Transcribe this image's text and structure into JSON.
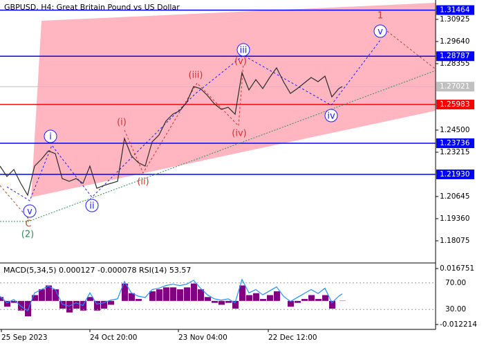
{
  "chart_data": [
    {
      "type": "line",
      "title": "GBPUSD, H4:  Great Britain Pound vs US Dollar",
      "x": [
        0,
        2,
        4,
        6,
        8,
        10,
        12,
        14,
        16,
        18,
        20,
        22,
        24,
        26,
        28,
        30,
        32,
        34,
        36,
        38,
        40,
        42,
        44,
        46,
        48,
        50,
        52,
        54,
        56,
        58,
        60,
        62,
        64,
        66,
        68,
        70,
        72,
        74,
        76,
        78,
        80,
        82,
        84,
        86,
        88,
        90,
        92,
        94,
        96,
        98,
        99
      ],
      "values": [
        1.22411,
        1.21808,
        1.2221,
        1.21407,
        1.20724,
        1.22411,
        1.22812,
        1.23294,
        1.23133,
        1.21688,
        1.21527,
        1.21688,
        1.21407,
        1.22411,
        1.21125,
        1.21286,
        1.21407,
        1.21527,
        1.24017,
        1.23013,
        1.22611,
        1.22411,
        1.23816,
        1.24218,
        1.25021,
        1.25423,
        1.25623,
        1.26105,
        1.27029,
        1.26909,
        1.26507,
        1.26025,
        1.25704,
        1.25824,
        1.25423,
        1.27832,
        1.26828,
        1.27431,
        1.26909,
        1.27551,
        1.28113,
        1.2731,
        1.26627,
        1.26909,
        1.2723,
        1.27551,
        1.2731,
        1.27631,
        1.26427,
        1.26909,
        1.27021
      ],
      "color": "#2b2b2b",
      "xlim": [
        0,
        126
      ],
      "ylim": [
        1.16789,
        1.32049
      ],
      "yticks": [
        1.30925,
        {
          "value": 1.2964,
          "label": "1.29640"
        },
        1.28355,
        {
          "value": 1.245,
          "label": "1.24500"
        },
        1.23215,
        1.20645,
        {
          "value": 1.1936,
          "label": "1.19360"
        },
        1.18075
      ],
      "levels": [
        {
          "value": 1.31464,
          "color": "#0000ff"
        },
        {
          "value": 1.28787,
          "color": "#0000ff"
        },
        {
          "value": 1.27021,
          "color": "#c0c0c0"
        },
        {
          "value": 1.25983,
          "color": "#ff0000"
        },
        {
          "value": 1.23736,
          "color": "#0000ff"
        },
        {
          "value": 1.2193,
          "label": "1.21930",
          "color": "#0000ff"
        }
      ],
      "annotations": [
        {
          "text": "1",
          "color": "#c0392b"
        },
        {
          "text": "v",
          "color": "#1a1aff",
          "circled": true
        },
        {
          "text": "iii",
          "color": "#1a1aff",
          "circled": true
        },
        {
          "text": "(v)",
          "color": "#d03030"
        },
        {
          "text": "(iii)",
          "color": "#d03030"
        },
        {
          "text": "(i)",
          "color": "#d03030"
        },
        {
          "text": "(ii)",
          "color": "#d03030"
        },
        {
          "text": "(iv)",
          "color": "#d03030"
        },
        {
          "text": "iv",
          "color": "#1a1aff",
          "circled": true
        },
        {
          "text": "i",
          "color": "#1a1aff",
          "circled": true
        },
        {
          "text": "ii",
          "color": "#1a1aff",
          "circled": true
        },
        {
          "text": "v",
          "color": "#1a1aff",
          "circled": true
        },
        {
          "text": "C",
          "color": "#a0522d"
        },
        {
          "text": "(2)",
          "color": "#2e8b57"
        }
      ]
    },
    {
      "type": "indicator",
      "title": "MACD(5,34,5) 0.000127 -0.000078 RSI(14) 53.57",
      "x": [
        0,
        2,
        4,
        6,
        8,
        10,
        12,
        14,
        16,
        18,
        20,
        22,
        24,
        26,
        28,
        30,
        32,
        34,
        36,
        38,
        40,
        42,
        44,
        46,
        48,
        50,
        52,
        54,
        56,
        58,
        60,
        62,
        64,
        66,
        68,
        70,
        72,
        74,
        76,
        78,
        80,
        82,
        84,
        86,
        88,
        90,
        92,
        94,
        96,
        98,
        99
      ],
      "xlim": [
        0,
        126
      ],
      "xticks": [
        {
          "value": 0.4,
          "label": "25 Sep 2023"
        },
        {
          "value": 26,
          "label": "24 Oct 20:00"
        },
        {
          "value": 51.6,
          "label": "23 Nov 04:00"
        },
        {
          "value": 77.6,
          "label": "22 Dec 12:00"
        }
      ],
      "ylim": [
        -0.014748,
        0.019648
      ],
      "yticks": [
        0.016751,
        -0.012214
      ],
      "y2lim": [
        0,
        100
      ],
      "y2ticks": [
        {
          "value": 70,
          "label": "70.00"
        },
        {
          "value": 30,
          "label": "30.00"
        }
      ],
      "series": [
        {
          "kind": "bar",
          "color": "#800080",
          "values": [
            0.002,
            -0.003,
            -0.001,
            -0.005,
            -0.008,
            0.003,
            0.006,
            0.008,
            0.006,
            -0.004,
            -0.006,
            -0.004,
            -0.005,
            0.002,
            -0.005,
            -0.004,
            -0.002,
            0,
            0.009,
            0.004,
            0.001,
            0,
            0.005,
            0.006,
            0.007,
            0.007,
            0.006,
            0.007,
            0.009,
            0.006,
            0.002,
            -0.001,
            -0.002,
            -0.001,
            -0.004,
            0.008,
            0.003,
            0.004,
            0.001,
            0.003,
            0.005,
            0,
            -0.003,
            -0.001,
            0.001,
            0.003,
            0.001,
            0.003,
            -0.004,
            0,
            0.000127
          ]
        },
        {
          "kind": "line",
          "axis": "y2",
          "color": "#1e90ff",
          "values": [
            50,
            40,
            45,
            35,
            28,
            55,
            60,
            65,
            60,
            38,
            35,
            40,
            36,
            55,
            38,
            40,
            44,
            46,
            72,
            55,
            50,
            48,
            60,
            62,
            66,
            68,
            66,
            68,
            74,
            62,
            52,
            46,
            44,
            46,
            40,
            75,
            55,
            60,
            52,
            58,
            64,
            50,
            42,
            48,
            54,
            60,
            54,
            62,
            40,
            50,
            53.57
          ]
        }
      ]
    }
  ]
}
